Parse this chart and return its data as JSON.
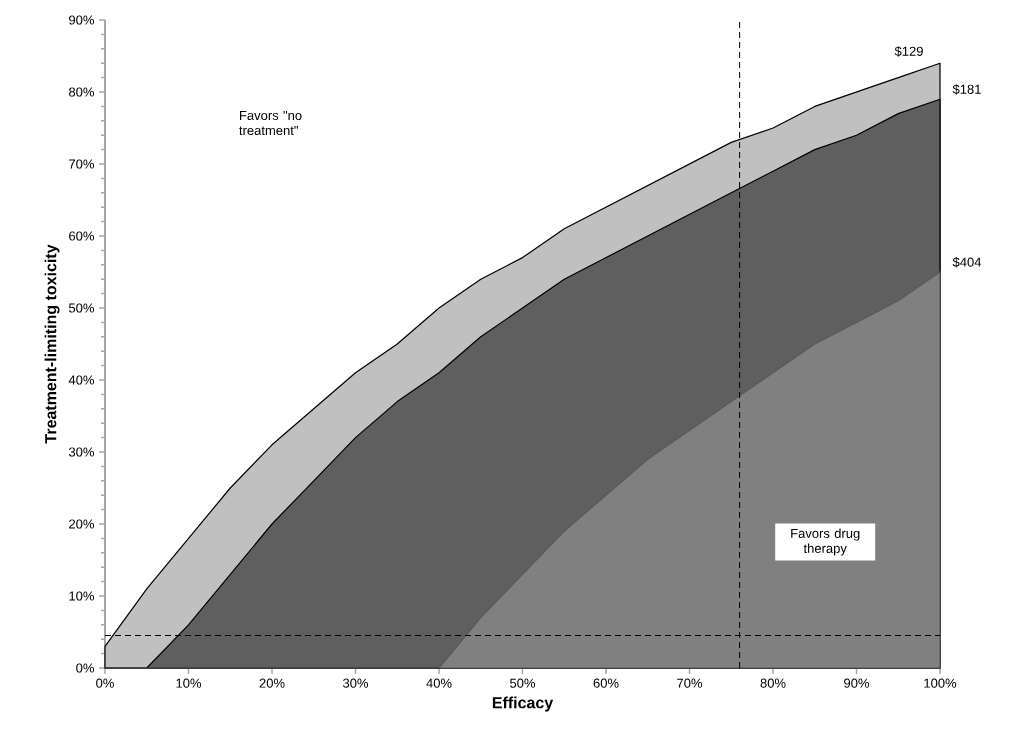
{
  "chart_data": {
    "type": "area",
    "xlabel": "Efficacy",
    "ylabel": "Treatment-limiting toxicity",
    "x": [
      0,
      5,
      10,
      15,
      20,
      25,
      30,
      35,
      40,
      45,
      50,
      55,
      60,
      65,
      70,
      75,
      80,
      85,
      90,
      95,
      100
    ],
    "series": [
      {
        "name": "$129",
        "color": "#c0c0c0",
        "values": [
          3,
          11,
          18,
          25,
          31,
          36,
          41,
          45,
          50,
          54,
          57,
          61,
          64,
          67,
          70,
          73,
          75,
          78,
          80,
          82,
          84
        ]
      },
      {
        "name": "$181",
        "color": "#5f5f5f",
        "values": [
          0,
          0,
          6,
          13,
          20,
          26,
          32,
          37,
          41,
          46,
          50,
          54,
          57,
          60,
          63,
          66,
          69,
          72,
          74,
          77,
          79
        ]
      },
      {
        "name": "$404",
        "color": "#808080",
        "values": [
          0,
          0,
          0,
          0,
          0,
          0,
          0,
          0,
          0,
          7,
          13,
          19,
          24,
          29,
          33,
          37,
          41,
          45,
          48,
          51,
          55
        ]
      }
    ],
    "xlim": [
      0,
      100
    ],
    "ylim": [
      0,
      90
    ],
    "xticks": [
      {
        "value": 0,
        "label": "0%"
      },
      {
        "value": 10,
        "label": "10%"
      },
      {
        "value": 20,
        "label": "20%"
      },
      {
        "value": 30,
        "label": "30%"
      },
      {
        "value": 40,
        "label": "40%"
      },
      {
        "value": 50,
        "label": "50%"
      },
      {
        "value": 60,
        "label": "60%"
      },
      {
        "value": 70,
        "label": "70%"
      },
      {
        "value": 80,
        "label": "80%"
      },
      {
        "value": 90,
        "label": "90%"
      },
      {
        "value": 100,
        "label": "100%"
      }
    ],
    "yticks": [
      {
        "value": 0,
        "label": "0%"
      },
      {
        "value": 10,
        "label": "10%"
      },
      {
        "value": 20,
        "label": "20%"
      },
      {
        "value": 30,
        "label": "30%"
      },
      {
        "value": 40,
        "label": "40%"
      },
      {
        "value": 50,
        "label": "50%"
      },
      {
        "value": 60,
        "label": "60%"
      },
      {
        "value": 70,
        "label": "70%"
      },
      {
        "value": 80,
        "label": "80%"
      },
      {
        "value": 90,
        "label": "90%"
      }
    ],
    "ref_lines": [
      {
        "axis": "x",
        "value": 76,
        "line_style": "dashed"
      },
      {
        "axis": "y",
        "value": 4.5,
        "line_style": "dashed"
      }
    ],
    "annotations": [
      "Favors \"no treatment\"",
      "Favors drug therapy"
    ]
  }
}
